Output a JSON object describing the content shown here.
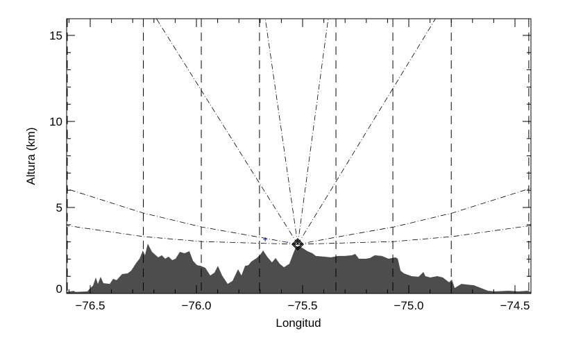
{
  "chart_data": {
    "type": "area",
    "title": "",
    "xlabel": "Longitud",
    "ylabel": "Altura (km)",
    "xlim": [
      -76.611,
      -74.425
    ],
    "ylim": [
      0,
      16
    ],
    "x_ticks": [
      -76.5,
      -76.0,
      -75.5,
      -75.0,
      -74.5
    ],
    "x_tick_labels": [
      "−76.5",
      "−76.0",
      "−75.5",
      "−75.0",
      "−74.5"
    ],
    "y_ticks": [
      0,
      5,
      10,
      15
    ],
    "y_tick_labels": [
      "0",
      "5",
      "10",
      "15"
    ],
    "grid": false,
    "colors": {
      "terrain": "#4d4d4d",
      "lines": "#000000",
      "marker": "#1a1a8c"
    },
    "terrain": [
      [
        -76.611,
        0.09
      ],
      [
        -76.578,
        0.15
      ],
      [
        -76.569,
        0.09
      ],
      [
        -76.513,
        0.12
      ],
      [
        -76.503,
        0.28
      ],
      [
        -76.487,
        0.46
      ],
      [
        -76.474,
        0.93
      ],
      [
        -76.464,
        0.56
      ],
      [
        -76.451,
        0.97
      ],
      [
        -76.438,
        0.6
      ],
      [
        -76.408,
        0.56
      ],
      [
        -76.392,
        0.85
      ],
      [
        -76.376,
        0.77
      ],
      [
        -76.35,
        1.13
      ],
      [
        -76.324,
        1.17
      ],
      [
        -76.307,
        1.33
      ],
      [
        -76.284,
        1.77
      ],
      [
        -76.268,
        2.02
      ],
      [
        -76.252,
        2.5
      ],
      [
        -76.242,
        2.22
      ],
      [
        -76.229,
        2.9
      ],
      [
        -76.209,
        2.42
      ],
      [
        -76.18,
        2.1
      ],
      [
        -76.163,
        2.22
      ],
      [
        -76.147,
        2.02
      ],
      [
        -76.131,
        2.14
      ],
      [
        -76.114,
        1.94
      ],
      [
        -76.098,
        2.02
      ],
      [
        -76.078,
        2.42
      ],
      [
        -76.056,
        2.34
      ],
      [
        -76.033,
        2.46
      ],
      [
        -76.016,
        1.9
      ],
      [
        -75.997,
        1.65
      ],
      [
        -75.98,
        1.61
      ],
      [
        -75.958,
        1.49
      ],
      [
        -75.935,
        1.05
      ],
      [
        -75.915,
        1.21
      ],
      [
        -75.899,
        1.61
      ],
      [
        -75.879,
        1.05
      ],
      [
        -75.853,
        0.56
      ],
      [
        -75.83,
        0.73
      ],
      [
        -75.804,
        1.41
      ],
      [
        -75.788,
        1.05
      ],
      [
        -75.771,
        1.61
      ],
      [
        -75.755,
        1.65
      ],
      [
        -75.742,
        1.85
      ],
      [
        -75.716,
        2.06
      ],
      [
        -75.699,
        2.26
      ],
      [
        -75.686,
        2.5
      ],
      [
        -75.667,
        2.14
      ],
      [
        -75.644,
        1.81
      ],
      [
        -75.627,
        2.06
      ],
      [
        -75.608,
        1.73
      ],
      [
        -75.588,
        1.53
      ],
      [
        -75.562,
        1.73
      ],
      [
        -75.546,
        2.26
      ],
      [
        -75.533,
        2.66
      ],
      [
        -75.52,
        2.78
      ],
      [
        -75.497,
        2.62
      ],
      [
        -75.477,
        2.46
      ],
      [
        -75.454,
        2.34
      ],
      [
        -75.438,
        2.18
      ],
      [
        -75.399,
        2.14
      ],
      [
        -75.366,
        2.1
      ],
      [
        -75.333,
        2.18
      ],
      [
        -75.301,
        2.18
      ],
      [
        -75.268,
        2.22
      ],
      [
        -75.252,
        2.3
      ],
      [
        -75.235,
        2.02
      ],
      [
        -75.203,
        2.02
      ],
      [
        -75.183,
        2.06
      ],
      [
        -75.16,
        2.22
      ],
      [
        -75.127,
        2.18
      ],
      [
        -75.095,
        2.02
      ],
      [
        -75.062,
        2.1
      ],
      [
        -75.052,
        2.02
      ],
      [
        -75.039,
        1.33
      ],
      [
        -75.023,
        1.17
      ],
      [
        -74.987,
        1.01
      ],
      [
        -74.954,
        0.97
      ],
      [
        -74.931,
        1.25
      ],
      [
        -74.922,
        1.01
      ],
      [
        -74.899,
        0.93
      ],
      [
        -74.866,
        1.01
      ],
      [
        -74.84,
        0.93
      ],
      [
        -74.81,
        0.65
      ],
      [
        -74.797,
        0.81
      ],
      [
        -74.784,
        0.32
      ],
      [
        -74.752,
        0.56
      ],
      [
        -74.725,
        0.52
      ],
      [
        -74.693,
        0.48
      ],
      [
        -74.66,
        0.32
      ],
      [
        -74.627,
        0.16
      ],
      [
        -74.595,
        0.12
      ],
      [
        -74.529,
        0.16
      ],
      [
        -74.484,
        0.12
      ],
      [
        -74.441,
        0.16
      ],
      [
        -74.425,
        0.08
      ]
    ],
    "radar": {
      "lon": -75.523,
      "alt": 2.86,
      "symbol": "diamond"
    },
    "markers": [
      {
        "lon": -75.676,
        "alt": 3.15,
        "symbol": "plus"
      },
      {
        "lon": -75.572,
        "alt": 2.98,
        "symbol": "dot"
      }
    ],
    "beams": [
      [
        [
          -75.523,
          2.86
        ],
        [
          -75.703,
          3.27
        ],
        [
          -75.977,
          3.87
        ],
        [
          -76.252,
          4.68
        ],
        [
          -76.611,
          6.09
        ]
      ],
      [
        [
          -75.523,
          2.86
        ],
        [
          -75.977,
          3.02
        ],
        [
          -76.252,
          3.31
        ],
        [
          -76.611,
          3.95
        ]
      ],
      [
        [
          -75.523,
          2.86
        ],
        [
          -75.343,
          3.27
        ],
        [
          -75.069,
          3.87
        ],
        [
          -74.794,
          4.68
        ],
        [
          -74.425,
          6.12
        ]
      ],
      [
        [
          -75.523,
          2.86
        ],
        [
          -75.069,
          3.02
        ],
        [
          -74.794,
          3.31
        ],
        [
          -74.425,
          3.95
        ]
      ],
      [
        [
          -75.523,
          2.86
        ],
        [
          -76.19,
          16
        ]
      ],
      [
        [
          -75.523,
          2.86
        ],
        [
          -75.676,
          16
        ]
      ],
      [
        [
          -75.523,
          2.86
        ],
        [
          -75.379,
          16
        ]
      ],
      [
        [
          -75.523,
          2.86
        ],
        [
          -74.873,
          16
        ]
      ]
    ],
    "vertical_lines": [
      -76.608,
      -76.25,
      -75.977,
      -75.703,
      -75.343,
      -75.075,
      -74.8,
      -74.435
    ]
  }
}
